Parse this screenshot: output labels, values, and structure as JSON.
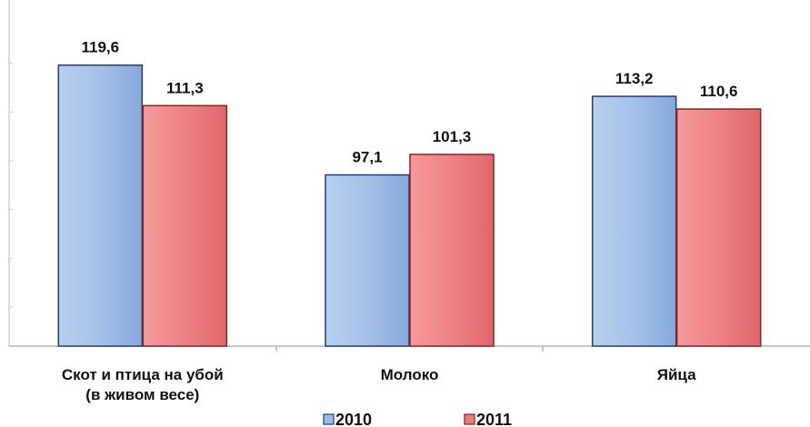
{
  "chart_data": {
    "type": "bar",
    "categories": [
      [
        "Скот и птица на убой",
        "(в живом весе)"
      ],
      [
        "Молоко"
      ],
      [
        "Яйца"
      ]
    ],
    "series": [
      {
        "name": "2010",
        "values": [
          119.6,
          97.1,
          113.2
        ],
        "labels": [
          "119,6",
          "97,1",
          "113,2"
        ],
        "color": "#9dbde6",
        "stroke": "#1f3f7a"
      },
      {
        "name": "2011",
        "values": [
          111.3,
          101.3,
          110.6
        ],
        "labels": [
          "111,3",
          "101,3",
          "110,6"
        ],
        "color": "#ee7a7c",
        "stroke": "#8a2225"
      }
    ],
    "ylim": [
      62,
      125
    ],
    "legend_position": "bottom",
    "grid": false
  }
}
